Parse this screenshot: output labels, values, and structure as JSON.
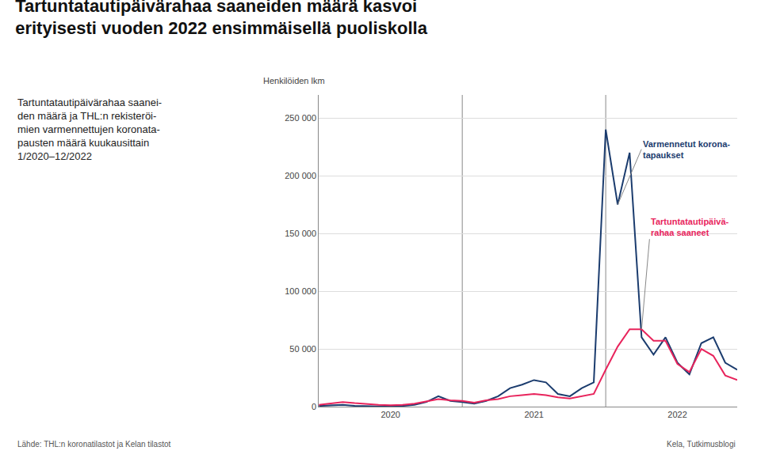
{
  "chart_data": {
    "type": "line",
    "title": "Tartuntatautipäivärahaa saaneiden määrä kasvoi\nerityisesti vuoden 2022 ensimmäisellä puoliskolla",
    "subtitle": "Tartuntatautipäivärahaa saanei-\nden määrä ja THL:n rekisteröi-\nmien varmennettujen koronata-\npausten määrä kuukausittain\n1/2020–12/2022",
    "ylabel": "Henkilöiden lkm",
    "source": [
      "Lähde: THL:n koronatilastot ja Kelan tilastot",
      "Kela, Tutkimusblogi"
    ],
    "categories": [
      null,
      null,
      null,
      null,
      null,
      null,
      "2020",
      null,
      null,
      null,
      null,
      null,
      null,
      null,
      null,
      null,
      null,
      null,
      "2021",
      null,
      null,
      null,
      null,
      null,
      null,
      null,
      null,
      null,
      null,
      null,
      "2022",
      null,
      null,
      null,
      null,
      null
    ],
    "series": [
      {
        "name": "Varmennetut korona-\ntapaukset",
        "color": "#1b3c6e",
        "values": [
          600,
          1200,
          1500,
          700,
          300,
          200,
          300,
          600,
          1500,
          4000,
          9000,
          5000,
          4000,
          2500,
          5000,
          9000,
          16000,
          19000,
          23000,
          21000,
          11000,
          9000,
          16000,
          21000,
          240000,
          175000,
          220000,
          60000,
          45000,
          60000,
          38000,
          28000,
          55000,
          60000,
          38000,
          32000
        ]
      },
      {
        "name": "Tartuntatautipäivä-\nrahaa saaneet",
        "color": "#e8245c",
        "values": [
          1500,
          3000,
          4000,
          3000,
          2000,
          1500,
          1200,
          1500,
          2500,
          4500,
          6500,
          5500,
          5000,
          3500,
          5500,
          6500,
          9000,
          10000,
          11000,
          10000,
          8000,
          7000,
          9000,
          11000,
          32000,
          52000,
          67000,
          67000,
          57000,
          57000,
          37000,
          30000,
          50000,
          44000,
          27000,
          23000
        ]
      }
    ],
    "ylim": [
      0,
      270000
    ],
    "yticks": [
      0,
      {
        "value": 50000,
        "label": "50 000"
      },
      {
        "value": 100000,
        "label": "100 000"
      },
      {
        "value": 150000,
        "label": "150 000"
      },
      {
        "value": 200000,
        "label": "200 000"
      },
      {
        "value": 250000,
        "label": "250 000"
      }
    ],
    "grid": true
  }
}
